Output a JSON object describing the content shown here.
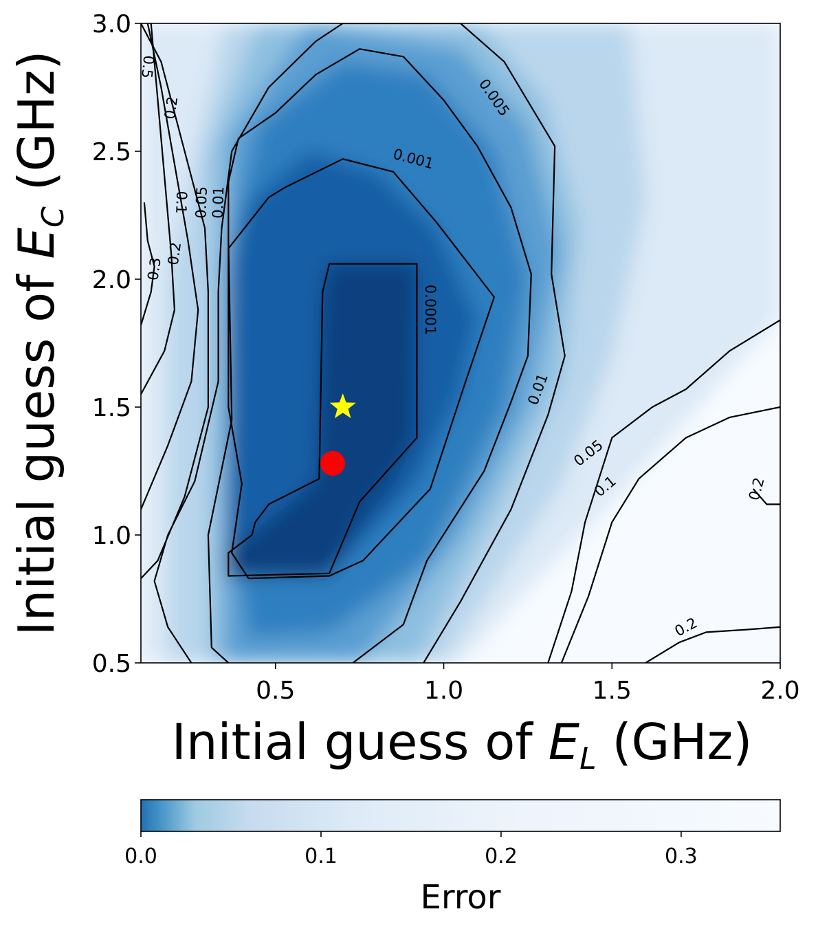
{
  "chart_data": {
    "type": "heatmap",
    "subtype": "filled contour",
    "xlabel": {
      "prefix": "Initial guess of ",
      "symbol": "E",
      "sub": "L",
      "suffix": " (GHz)"
    },
    "ylabel": {
      "prefix": "Initial guess of ",
      "symbol": "E",
      "sub": "C",
      "suffix": " (GHz)"
    },
    "xlim": [
      0.1,
      2.0
    ],
    "ylim": [
      0.5,
      3.0
    ],
    "xticks": [
      {
        "value": 0.5,
        "label": "0.5"
      },
      {
        "value": 1.0,
        "label": "1.0"
      },
      {
        "value": 1.5,
        "label": "1.5"
      },
      {
        "value": 2.0,
        "label": "2.0"
      }
    ],
    "yticks": [
      {
        "value": 0.5,
        "label": "0.5"
      },
      {
        "value": 1.0,
        "label": "1.0"
      },
      {
        "value": 1.5,
        "label": "1.5"
      },
      {
        "value": 2.0,
        "label": "2.0"
      },
      {
        "value": 2.5,
        "label": "2.5"
      },
      {
        "value": 3.0,
        "label": "3.0"
      }
    ],
    "colormap": "Blues (reversed)",
    "colorbar": {
      "title": "Error",
      "range": [
        0.0,
        0.355
      ],
      "ticks": [
        {
          "value": 0.0,
          "label": "0.0"
        },
        {
          "value": 0.1,
          "label": "0.1"
        },
        {
          "value": 0.2,
          "label": "0.2"
        },
        {
          "value": 0.3,
          "label": "0.3"
        }
      ],
      "placement": "bottom, horizontal",
      "stops": [
        {
          "value": 0.0,
          "color": "#2171b5"
        },
        {
          "value": 0.01,
          "color": "#4292c6"
        },
        {
          "value": 0.03,
          "color": "#9ecae1"
        },
        {
          "value": 0.06,
          "color": "#c6dbef"
        },
        {
          "value": 0.12,
          "color": "#deebf7"
        },
        {
          "value": 0.2,
          "color": "#ecf3fb"
        },
        {
          "value": 0.355,
          "color": "#f7fbff"
        }
      ]
    },
    "fill_levels": [
      {
        "color": "#f7fbff",
        "polygon": [
          [
            0.1,
            0.5
          ],
          [
            2.0,
            0.5
          ],
          [
            2.0,
            3.0
          ],
          [
            0.1,
            3.0
          ]
        ]
      },
      {
        "color": "#dce9f6",
        "polygon": [
          [
            0.1,
            0.5
          ],
          [
            1.05,
            0.5
          ],
          [
            1.55,
            1.2
          ],
          [
            2.0,
            1.85
          ],
          [
            2.0,
            3.0
          ],
          [
            0.1,
            3.0
          ]
        ]
      },
      {
        "color": "#b9d6ec",
        "polygon": [
          [
            0.18,
            0.5
          ],
          [
            1.0,
            0.5
          ],
          [
            1.35,
            1.2
          ],
          [
            1.5,
            1.7
          ],
          [
            1.6,
            2.3
          ],
          [
            1.55,
            3.0
          ],
          [
            0.35,
            3.0
          ],
          [
            0.18,
            2.0
          ]
        ]
      },
      {
        "color": "#8ebfe0",
        "polygon": [
          [
            0.3,
            0.5
          ],
          [
            0.92,
            0.5
          ],
          [
            1.18,
            1.15
          ],
          [
            1.35,
            1.6
          ],
          [
            1.4,
            2.2
          ],
          [
            1.3,
            2.7
          ],
          [
            1.1,
            3.0
          ],
          [
            0.45,
            3.0
          ],
          [
            0.3,
            2.5
          ]
        ]
      },
      {
        "color": "#5a9ed2",
        "polygon": [
          [
            0.35,
            0.5
          ],
          [
            0.75,
            0.5
          ],
          [
            1.05,
            1.0
          ],
          [
            1.25,
            1.5
          ],
          [
            1.35,
            2.1
          ],
          [
            1.25,
            2.6
          ],
          [
            1.05,
            2.9
          ],
          [
            0.6,
            3.0
          ],
          [
            0.36,
            2.55
          ]
        ]
      },
      {
        "color": "#2f7fc0",
        "polygon": [
          [
            0.42,
            0.6
          ],
          [
            0.66,
            0.62
          ],
          [
            0.95,
            0.9
          ],
          [
            1.18,
            1.5
          ],
          [
            1.25,
            2.0
          ],
          [
            1.15,
            2.5
          ],
          [
            0.95,
            2.8
          ],
          [
            0.7,
            2.85
          ],
          [
            0.45,
            2.6
          ],
          [
            0.36,
            2.1
          ],
          [
            0.36,
            1.2
          ]
        ]
      },
      {
        "color": "#145fa6",
        "polygon": [
          [
            0.35,
            0.83
          ],
          [
            0.7,
            0.9
          ],
          [
            0.92,
            1.2
          ],
          [
            1.05,
            1.55
          ],
          [
            1.1,
            1.85
          ],
          [
            0.98,
            2.2
          ],
          [
            0.8,
            2.42
          ],
          [
            0.6,
            2.5
          ],
          [
            0.42,
            2.3
          ],
          [
            0.36,
            2.0
          ],
          [
            0.36,
            1.4
          ]
        ]
      },
      {
        "color": "#0e4a8c",
        "polygon": [
          [
            0.36,
            0.84
          ],
          [
            0.66,
            0.84
          ],
          [
            0.85,
            1.18
          ],
          [
            0.92,
            1.4
          ],
          [
            0.92,
            2.06
          ],
          [
            0.65,
            2.06
          ],
          [
            0.63,
            1.92
          ],
          [
            0.62,
            1.22
          ],
          [
            0.43,
            0.98
          ]
        ]
      },
      {
        "color": "#0b3f7e",
        "polygon": [
          [
            0.36,
            0.84
          ],
          [
            0.65,
            0.84
          ],
          [
            0.74,
            1.1
          ],
          [
            0.9,
            1.35
          ],
          [
            0.92,
            2.06
          ],
          [
            0.66,
            2.06
          ],
          [
            0.63,
            1.22
          ],
          [
            0.36,
            0.93
          ]
        ]
      }
    ],
    "contours": [
      {
        "level": "0.0001",
        "points": [
          [
            0.36,
            0.84
          ],
          [
            0.36,
            0.93
          ],
          [
            0.43,
            1.0
          ],
          [
            0.44,
            1.05
          ],
          [
            0.48,
            1.12
          ],
          [
            0.63,
            1.22
          ],
          [
            0.64,
            1.95
          ],
          [
            0.66,
            2.06
          ],
          [
            0.92,
            2.06
          ],
          [
            0.92,
            1.38
          ],
          [
            0.75,
            1.13
          ],
          [
            0.66,
            0.85
          ],
          [
            0.36,
            0.84
          ]
        ],
        "closed": true
      },
      {
        "level": "0.001",
        "points": [
          [
            0.42,
            0.83
          ],
          [
            0.66,
            0.84
          ],
          [
            0.76,
            0.9
          ],
          [
            0.96,
            1.18
          ],
          [
            1.06,
            1.58
          ],
          [
            1.15,
            1.93
          ],
          [
            0.98,
            2.22
          ],
          [
            0.85,
            2.42
          ],
          [
            0.7,
            2.47
          ],
          [
            0.53,
            2.36
          ],
          [
            0.48,
            2.32
          ],
          [
            0.36,
            2.12
          ],
          [
            0.36,
            1.5
          ],
          [
            0.4,
            1.2
          ],
          [
            0.37,
            0.93
          ]
        ],
        "closed": true
      },
      {
        "level": "0.005",
        "points": [
          [
            0.36,
            0.5
          ],
          [
            0.31,
            0.56
          ],
          [
            0.3,
            1.0
          ],
          [
            0.37,
            1.45
          ],
          [
            0.36,
            2.15
          ],
          [
            0.36,
            2.38
          ],
          [
            0.39,
            2.55
          ],
          [
            0.5,
            2.65
          ],
          [
            0.62,
            2.8
          ],
          [
            0.75,
            2.9
          ],
          [
            0.88,
            2.87
          ],
          [
            1.0,
            2.7
          ],
          [
            1.1,
            2.52
          ],
          [
            1.2,
            2.28
          ],
          [
            1.26,
            2.02
          ],
          [
            1.25,
            1.7
          ],
          [
            1.2,
            1.52
          ],
          [
            1.12,
            1.25
          ],
          [
            0.95,
            0.9
          ],
          [
            0.88,
            0.65
          ],
          [
            0.73,
            0.5
          ]
        ]
      },
      {
        "level": "0.01",
        "points": [
          [
            0.25,
            0.5
          ],
          [
            0.18,
            0.64
          ],
          [
            0.14,
            0.82
          ],
          [
            0.18,
            1.0
          ],
          [
            0.26,
            1.21
          ],
          [
            0.33,
            1.6
          ],
          [
            0.33,
            1.95
          ],
          [
            0.34,
            2.2
          ],
          [
            0.37,
            2.5
          ],
          [
            0.48,
            2.75
          ],
          [
            0.62,
            2.93
          ],
          [
            0.7,
            3.0
          ],
          [
            1.05,
            3.0
          ],
          [
            1.18,
            2.85
          ],
          [
            1.33,
            2.52
          ],
          [
            1.32,
            2.02
          ],
          [
            1.36,
            1.7
          ],
          [
            1.31,
            1.47
          ],
          [
            1.2,
            1.1
          ],
          [
            1.05,
            0.74
          ],
          [
            0.94,
            0.5
          ]
        ]
      },
      {
        "level": "0.05",
        "points": [
          [
            0.1,
            0.83
          ],
          [
            0.15,
            0.9
          ],
          [
            0.23,
            1.15
          ],
          [
            0.3,
            1.5
          ],
          [
            0.3,
            1.95
          ],
          [
            0.29,
            2.2
          ],
          [
            0.22,
            2.55
          ],
          [
            0.16,
            2.85
          ],
          [
            0.1,
            3.0
          ]
        ]
      },
      {
        "level": "0.05",
        "points": [
          [
            1.31,
            0.5
          ],
          [
            1.38,
            0.78
          ],
          [
            1.42,
            1.05
          ],
          [
            1.5,
            1.38
          ],
          [
            1.62,
            1.5
          ],
          [
            1.72,
            1.57
          ],
          [
            1.85,
            1.72
          ],
          [
            2.0,
            1.84
          ]
        ]
      },
      {
        "level": "0.1",
        "points": [
          [
            0.1,
            1.1
          ],
          [
            0.18,
            1.35
          ],
          [
            0.25,
            1.6
          ],
          [
            0.27,
            1.88
          ],
          [
            0.24,
            2.15
          ],
          [
            0.2,
            2.45
          ],
          [
            0.16,
            2.75
          ],
          [
            0.12,
            3.0
          ]
        ]
      },
      {
        "level": "0.1",
        "points": [
          [
            1.35,
            0.5
          ],
          [
            1.43,
            0.76
          ],
          [
            1.5,
            1.05
          ],
          [
            1.58,
            1.22
          ],
          [
            1.72,
            1.38
          ],
          [
            1.85,
            1.46
          ],
          [
            2.0,
            1.5
          ]
        ]
      },
      {
        "level": "0.2",
        "points": [
          [
            0.1,
            1.55
          ],
          [
            0.17,
            1.72
          ],
          [
            0.2,
            1.88
          ],
          [
            0.19,
            2.1
          ],
          [
            0.17,
            2.4
          ],
          [
            0.15,
            2.7
          ],
          [
            0.13,
            3.0
          ]
        ]
      },
      {
        "level": "0.2",
        "points": [
          [
            1.92,
            1.18
          ],
          [
            1.96,
            1.12
          ],
          [
            2.0,
            1.12
          ]
        ]
      },
      {
        "level": "0.2",
        "points": [
          [
            1.6,
            0.5
          ],
          [
            1.7,
            0.58
          ],
          [
            1.78,
            0.62
          ],
          [
            1.9,
            0.63
          ],
          [
            2.0,
            0.64
          ]
        ]
      },
      {
        "level": "0.3",
        "points": [
          [
            0.1,
            1.82
          ],
          [
            0.13,
            1.95
          ],
          [
            0.14,
            2.05
          ],
          [
            0.12,
            2.15
          ],
          [
            0.11,
            2.3
          ]
        ]
      }
    ],
    "contour_labels": [
      {
        "text": "0.0001",
        "x": 0.96,
        "y": 1.88,
        "rotation": 90
      },
      {
        "text": "0.001",
        "x": 0.91,
        "y": 2.47,
        "rotation": 15
      },
      {
        "text": "0.005",
        "x": 1.15,
        "y": 2.71,
        "rotation": 55
      },
      {
        "text": "0.01",
        "x": 1.28,
        "y": 1.57,
        "rotation": -70
      },
      {
        "text": "0.05",
        "x": 0.28,
        "y": 2.3,
        "rotation": -88
      },
      {
        "text": "0.01",
        "x": 0.33,
        "y": 2.3,
        "rotation": -88
      },
      {
        "text": "0.1",
        "x": 0.22,
        "y": 2.3,
        "rotation": 92
      },
      {
        "text": "0.2",
        "x": 0.19,
        "y": 2.67,
        "rotation": -82
      },
      {
        "text": "0.2",
        "x": 0.2,
        "y": 2.1,
        "rotation": -82
      },
      {
        "text": "0.3",
        "x": 0.14,
        "y": 2.04,
        "rotation": -82
      },
      {
        "text": "0.5",
        "x": 0.12,
        "y": 2.83,
        "rotation": 96
      },
      {
        "text": "0.05",
        "x": 1.43,
        "y": 1.32,
        "rotation": -38
      },
      {
        "text": "0.1",
        "x": 1.48,
        "y": 1.19,
        "rotation": -40
      },
      {
        "text": "0.2",
        "x": 1.93,
        "y": 1.18,
        "rotation": -75
      },
      {
        "text": "0.2",
        "x": 1.72,
        "y": 0.64,
        "rotation": -28
      }
    ],
    "markers": [
      {
        "name": "star",
        "x": 0.7,
        "y": 1.5,
        "color": "#ffff00"
      },
      {
        "name": "circle",
        "x": 0.67,
        "y": 1.28,
        "color": "#ff0000"
      }
    ]
  }
}
